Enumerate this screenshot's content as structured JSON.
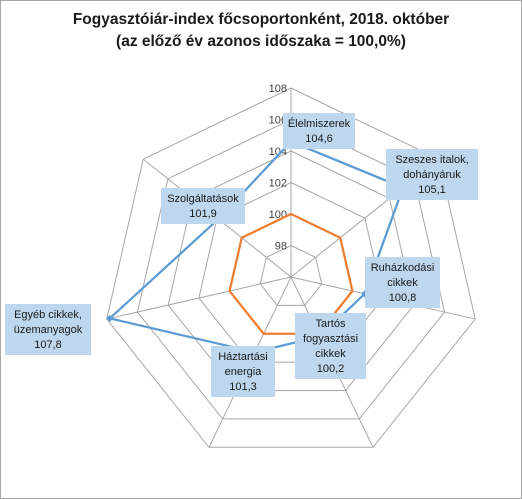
{
  "chart_data": {
    "type": "radar",
    "title": "Fogyasztóiár-index főcsoportonként, 2018. október",
    "subtitle": "(az előző év azonos időszaka = 100,0%)",
    "categories": [
      [
        "Élelmiszerek"
      ],
      [
        "Szeszes italok,",
        "dohányáruk"
      ],
      [
        "Ruházkodási",
        "cikkek"
      ],
      [
        "Tartós",
        "fogyasztási",
        "cikkek"
      ],
      [
        "Háztartási",
        "energia"
      ],
      [
        "Egyéb cikkek,",
        "üzemanyagok"
      ],
      [
        "Szolgáltatások"
      ]
    ],
    "series": [
      {
        "values": [
          104.6,
          105.1,
          100.8,
          100.2,
          101.3,
          107.8,
          101.9
        ],
        "color": "#5b9bd5",
        "value_labels": [
          "104,6",
          "105,1",
          "100,8",
          "100,2",
          "101,3",
          "107,8",
          "101,9"
        ]
      },
      {
        "values": [
          100,
          100,
          100,
          100,
          100,
          100,
          100
        ],
        "color": "#ed7d31"
      }
    ],
    "radial_axis": {
      "min": 96,
      "max": 108,
      "step": 2,
      "tick_labels": [
        "98",
        "100",
        "102",
        "104",
        "106",
        "108"
      ]
    },
    "grid": true,
    "grid_color": "#a6a6a6"
  }
}
